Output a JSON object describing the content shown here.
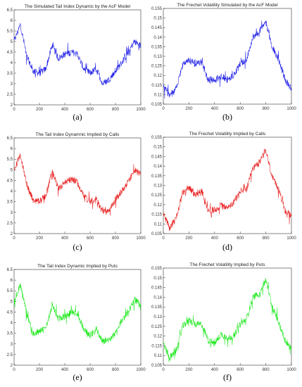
{
  "chart_data": [
    {
      "type": "line",
      "title": "The Simulated Tail Index Dynamic by the AcF Model",
      "caption": "(a)",
      "color": "#1f1fe8",
      "xlim": [
        0,
        1000
      ],
      "ylim": [
        2,
        6.5
      ],
      "xticks": [
        0,
        200,
        400,
        600,
        800,
        1000
      ],
      "yticks": [
        2,
        2.5,
        3,
        3.5,
        4,
        4.5,
        5,
        5.5,
        6,
        6.5
      ],
      "x": [
        0,
        50,
        100,
        150,
        200,
        250,
        300,
        350,
        400,
        450,
        500,
        550,
        600,
        650,
        700,
        750,
        800,
        850,
        900,
        950,
        1000
      ],
      "y": [
        5.0,
        5.8,
        4.3,
        3.6,
        3.5,
        3.7,
        4.8,
        4.2,
        4.4,
        4.5,
        4.4,
        3.7,
        3.5,
        3.7,
        3.0,
        3.2,
        3.6,
        4.0,
        4.5,
        5.0,
        4.8
      ]
    },
    {
      "type": "line",
      "title": "The Frechet Volatility Simulated by the AcF Model",
      "caption": "(b)",
      "color": "#1f1fe8",
      "xlim": [
        0,
        1000
      ],
      "ylim": [
        0.105,
        0.155
      ],
      "xticks": [
        0,
        200,
        400,
        600,
        800,
        1000
      ],
      "yticks": [
        0.105,
        0.11,
        0.115,
        0.12,
        0.125,
        0.13,
        0.135,
        0.14,
        0.145,
        0.15,
        0.155
      ],
      "x": [
        0,
        50,
        100,
        150,
        200,
        250,
        300,
        350,
        400,
        450,
        500,
        550,
        600,
        650,
        700,
        750,
        800,
        850,
        900,
        950,
        1000
      ],
      "y": [
        0.115,
        0.109,
        0.113,
        0.125,
        0.128,
        0.126,
        0.127,
        0.118,
        0.117,
        0.12,
        0.118,
        0.12,
        0.126,
        0.128,
        0.14,
        0.143,
        0.148,
        0.135,
        0.128,
        0.118,
        0.113
      ]
    },
    {
      "type": "line",
      "title": "The Tail Index Dynamnic Implied by Calls",
      "caption": "(c)",
      "color": "#e81f1f",
      "xlim": [
        0,
        1000
      ],
      "ylim": [
        2,
        6.5
      ],
      "xticks": [
        0,
        200,
        400,
        600,
        800,
        1000
      ],
      "yticks": [
        2,
        2.5,
        3,
        3.5,
        4,
        4.5,
        5,
        5.5,
        6,
        6.5
      ],
      "x": [
        0,
        50,
        100,
        150,
        200,
        250,
        300,
        350,
        400,
        450,
        500,
        550,
        600,
        650,
        700,
        750,
        800,
        850,
        900,
        950,
        1000
      ],
      "y": [
        5.0,
        5.7,
        4.3,
        3.6,
        3.5,
        3.8,
        4.9,
        4.1,
        4.4,
        4.6,
        4.4,
        3.8,
        3.5,
        3.6,
        3.0,
        3.1,
        3.6,
        4.0,
        4.4,
        5.0,
        4.8
      ]
    },
    {
      "type": "line",
      "title": "The Frechet Volatility Implied by Calls",
      "caption": "(d)",
      "color": "#e81f1f",
      "xlim": [
        0,
        1000
      ],
      "ylim": [
        0.105,
        0.155
      ],
      "xticks": [
        0,
        200,
        400,
        600,
        800,
        1000
      ],
      "yticks": [
        0.105,
        0.11,
        0.115,
        0.12,
        0.125,
        0.13,
        0.135,
        0.14,
        0.145,
        0.15,
        0.155
      ],
      "x": [
        0,
        50,
        100,
        150,
        200,
        250,
        300,
        350,
        400,
        450,
        500,
        550,
        600,
        650,
        700,
        750,
        800,
        850,
        900,
        950,
        1000
      ],
      "y": [
        0.115,
        0.108,
        0.113,
        0.126,
        0.129,
        0.125,
        0.127,
        0.117,
        0.117,
        0.12,
        0.118,
        0.121,
        0.127,
        0.128,
        0.139,
        0.142,
        0.148,
        0.134,
        0.128,
        0.117,
        0.114
      ]
    },
    {
      "type": "line",
      "title": "The Tail Index Dynamic Implied by Puts",
      "caption": "(e)",
      "color": "#1fe81f",
      "xlim": [
        0,
        1000
      ],
      "ylim": [
        2,
        6.5
      ],
      "xticks": [
        0,
        200,
        400,
        600,
        800,
        1000
      ],
      "yticks": [
        2,
        2.5,
        3,
        3.5,
        4,
        4.5,
        5,
        5.5,
        6,
        6.5
      ],
      "x": [
        0,
        50,
        100,
        150,
        200,
        250,
        300,
        350,
        400,
        450,
        500,
        550,
        600,
        650,
        700,
        750,
        800,
        850,
        900,
        950,
        1000
      ],
      "y": [
        5.0,
        5.8,
        4.4,
        3.5,
        3.6,
        3.7,
        4.8,
        4.2,
        4.3,
        4.5,
        4.4,
        3.7,
        3.4,
        3.7,
        3.1,
        3.2,
        3.5,
        4.1,
        4.5,
        5.1,
        4.8
      ]
    },
    {
      "type": "line",
      "title": "The Frechet Volatility Implied by Puts",
      "caption": "(f)",
      "color": "#1fe81f",
      "xlim": [
        0,
        1000
      ],
      "ylim": [
        0.105,
        0.155
      ],
      "xticks": [
        0,
        200,
        400,
        600,
        800,
        1000
      ],
      "yticks": [
        0.105,
        0.11,
        0.115,
        0.12,
        0.125,
        0.13,
        0.135,
        0.14,
        0.145,
        0.15,
        0.155
      ],
      "x": [
        0,
        50,
        100,
        150,
        200,
        250,
        300,
        350,
        400,
        450,
        500,
        550,
        600,
        650,
        700,
        750,
        800,
        850,
        900,
        950,
        1000
      ],
      "y": [
        0.116,
        0.109,
        0.112,
        0.125,
        0.128,
        0.126,
        0.126,
        0.118,
        0.116,
        0.121,
        0.119,
        0.12,
        0.126,
        0.129,
        0.14,
        0.142,
        0.149,
        0.135,
        0.127,
        0.118,
        0.113
      ]
    }
  ]
}
